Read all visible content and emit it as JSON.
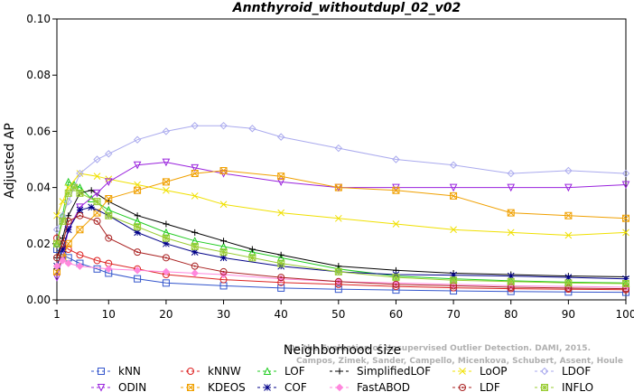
{
  "chart_data": {
    "type": "line",
    "title": "Annthyroid_withoutdupl_02_v02",
    "xlabel": "Neighborhood size",
    "ylabel": "Adjusted AP",
    "xlim": [
      1,
      100
    ],
    "ylim": [
      0,
      0.1
    ],
    "xticks": [
      1,
      10,
      20,
      30,
      40,
      50,
      60,
      70,
      80,
      90,
      100
    ],
    "yticks": [
      "0.00",
      "0.02",
      "0.04",
      "0.06",
      "0.08",
      "0.10"
    ],
    "watermark": [
      "Campos, Zimek, Sander, Campello, Micenkova, Schubert, Assent, Houle",
      "On the Evaluation of Unsupervised Outlier Detection. DAMI, 2015."
    ],
    "series": [
      {
        "name": "kNN",
        "color": "#3355cc",
        "marker": "square",
        "points": [
          [
            1,
            0.018
          ],
          [
            2,
            0.016
          ],
          [
            3,
            0.015
          ],
          [
            5,
            0.013
          ],
          [
            8,
            0.011
          ],
          [
            10,
            0.0095
          ],
          [
            15,
            0.0075
          ],
          [
            20,
            0.006
          ],
          [
            30,
            0.005
          ],
          [
            40,
            0.0042
          ],
          [
            50,
            0.0038
          ],
          [
            60,
            0.0035
          ],
          [
            70,
            0.0032
          ],
          [
            80,
            0.003
          ],
          [
            90,
            0.0028
          ],
          [
            100,
            0.0027
          ]
        ]
      },
      {
        "name": "kNNW",
        "color": "#dd2222",
        "marker": "circle",
        "points": [
          [
            1,
            0.022
          ],
          [
            2,
            0.02
          ],
          [
            3,
            0.018
          ],
          [
            5,
            0.016
          ],
          [
            8,
            0.014
          ],
          [
            10,
            0.013
          ],
          [
            15,
            0.011
          ],
          [
            20,
            0.009
          ],
          [
            30,
            0.0072
          ],
          [
            40,
            0.0062
          ],
          [
            50,
            0.0055
          ],
          [
            60,
            0.0048
          ],
          [
            70,
            0.0043
          ],
          [
            80,
            0.004
          ],
          [
            90,
            0.0038
          ],
          [
            100,
            0.0036
          ]
        ]
      },
      {
        "name": "LOF",
        "color": "#22cc22",
        "marker": "triangle-up",
        "points": [
          [
            1,
            0.02
          ],
          [
            2,
            0.03
          ],
          [
            3,
            0.042
          ],
          [
            4,
            0.041
          ],
          [
            5,
            0.04
          ],
          [
            7,
            0.036
          ],
          [
            10,
            0.032
          ],
          [
            15,
            0.028
          ],
          [
            20,
            0.024
          ],
          [
            25,
            0.021
          ],
          [
            30,
            0.019
          ],
          [
            35,
            0.017
          ],
          [
            40,
            0.015
          ],
          [
            50,
            0.011
          ],
          [
            60,
            0.0085
          ],
          [
            70,
            0.0075
          ],
          [
            80,
            0.0068
          ],
          [
            90,
            0.0063
          ],
          [
            100,
            0.006
          ]
        ]
      },
      {
        "name": "SimplifiedLOF",
        "color": "#000000",
        "marker": "plus",
        "points": [
          [
            1,
            0.015
          ],
          [
            2,
            0.022
          ],
          [
            3,
            0.03
          ],
          [
            5,
            0.038
          ],
          [
            7,
            0.039
          ],
          [
            10,
            0.035
          ],
          [
            15,
            0.03
          ],
          [
            20,
            0.027
          ],
          [
            25,
            0.024
          ],
          [
            30,
            0.021
          ],
          [
            35,
            0.018
          ],
          [
            40,
            0.016
          ],
          [
            50,
            0.012
          ],
          [
            60,
            0.0105
          ],
          [
            70,
            0.0095
          ],
          [
            80,
            0.009
          ],
          [
            90,
            0.0085
          ],
          [
            100,
            0.0082
          ]
        ]
      },
      {
        "name": "LoOP",
        "color": "#f0e000",
        "marker": "cross",
        "points": [
          [
            1,
            0.03
          ],
          [
            2,
            0.035
          ],
          [
            3,
            0.04
          ],
          [
            5,
            0.045
          ],
          [
            8,
            0.044
          ],
          [
            10,
            0.043
          ],
          [
            15,
            0.041
          ],
          [
            20,
            0.039
          ],
          [
            25,
            0.037
          ],
          [
            30,
            0.034
          ],
          [
            40,
            0.031
          ],
          [
            50,
            0.029
          ],
          [
            60,
            0.027
          ],
          [
            70,
            0.025
          ],
          [
            80,
            0.024
          ],
          [
            90,
            0.023
          ],
          [
            100,
            0.024
          ]
        ]
      },
      {
        "name": "LDOF",
        "color": "#aaaaee",
        "marker": "diamond",
        "points": [
          [
            1,
            0.025
          ],
          [
            2,
            0.03
          ],
          [
            3,
            0.035
          ],
          [
            5,
            0.045
          ],
          [
            8,
            0.05
          ],
          [
            10,
            0.052
          ],
          [
            15,
            0.057
          ],
          [
            20,
            0.06
          ],
          [
            25,
            0.062
          ],
          [
            30,
            0.062
          ],
          [
            35,
            0.061
          ],
          [
            40,
            0.058
          ],
          [
            50,
            0.054
          ],
          [
            60,
            0.05
          ],
          [
            70,
            0.048
          ],
          [
            80,
            0.045
          ],
          [
            90,
            0.046
          ],
          [
            100,
            0.045
          ]
        ]
      },
      {
        "name": "ODIN",
        "color": "#9922dd",
        "marker": "triangle-down",
        "points": [
          [
            1,
            0.008
          ],
          [
            2,
            0.015
          ],
          [
            3,
            0.025
          ],
          [
            5,
            0.033
          ],
          [
            8,
            0.038
          ],
          [
            10,
            0.042
          ],
          [
            15,
            0.048
          ],
          [
            20,
            0.049
          ],
          [
            25,
            0.047
          ],
          [
            30,
            0.045
          ],
          [
            40,
            0.042
          ],
          [
            50,
            0.04
          ],
          [
            60,
            0.04
          ],
          [
            70,
            0.04
          ],
          [
            80,
            0.04
          ],
          [
            90,
            0.04
          ],
          [
            100,
            0.041
          ]
        ]
      },
      {
        "name": "KDEOS",
        "color": "#f0a000",
        "marker": "square-x",
        "points": [
          [
            1,
            0.01
          ],
          [
            2,
            0.015
          ],
          [
            3,
            0.02
          ],
          [
            5,
            0.025
          ],
          [
            8,
            0.031
          ],
          [
            10,
            0.036
          ],
          [
            15,
            0.039
          ],
          [
            20,
            0.042
          ],
          [
            25,
            0.045
          ],
          [
            30,
            0.046
          ],
          [
            40,
            0.044
          ],
          [
            50,
            0.04
          ],
          [
            60,
            0.039
          ],
          [
            70,
            0.037
          ],
          [
            80,
            0.031
          ],
          [
            90,
            0.03
          ],
          [
            100,
            0.029
          ]
        ]
      },
      {
        "name": "COF",
        "color": "#000088",
        "marker": "asterisk",
        "points": [
          [
            1,
            0.012
          ],
          [
            2,
            0.018
          ],
          [
            3,
            0.025
          ],
          [
            5,
            0.032
          ],
          [
            7,
            0.033
          ],
          [
            10,
            0.03
          ],
          [
            15,
            0.024
          ],
          [
            20,
            0.02
          ],
          [
            25,
            0.017
          ],
          [
            30,
            0.015
          ],
          [
            40,
            0.012
          ],
          [
            50,
            0.01
          ],
          [
            60,
            0.009
          ],
          [
            70,
            0.0088
          ],
          [
            80,
            0.0085
          ],
          [
            90,
            0.008
          ],
          [
            100,
            0.0075
          ]
        ]
      },
      {
        "name": "FastABOD",
        "color": "#ff88dd",
        "marker": "diamond-filled",
        "points": [
          [
            1,
            0.012
          ],
          [
            2,
            0.014
          ],
          [
            3,
            0.013
          ],
          [
            5,
            0.012
          ],
          [
            10,
            0.011
          ],
          [
            15,
            0.0105
          ],
          [
            20,
            0.01
          ],
          [
            25,
            0.0095
          ],
          [
            30,
            0.009
          ],
          [
            40,
            0.0075
          ],
          [
            50,
            0.0065
          ],
          [
            60,
            0.006
          ],
          [
            70,
            0.0055
          ],
          [
            80,
            0.005
          ],
          [
            90,
            0.0048
          ],
          [
            100,
            0.0045
          ]
        ]
      },
      {
        "name": "LDF",
        "color": "#aa2222",
        "marker": "circle-dot",
        "points": [
          [
            1,
            0.015
          ],
          [
            2,
            0.02
          ],
          [
            3,
            0.028
          ],
          [
            5,
            0.03
          ],
          [
            8,
            0.028
          ],
          [
            10,
            0.022
          ],
          [
            15,
            0.017
          ],
          [
            20,
            0.015
          ],
          [
            25,
            0.012
          ],
          [
            30,
            0.01
          ],
          [
            40,
            0.008
          ],
          [
            50,
            0.0065
          ],
          [
            60,
            0.0055
          ],
          [
            70,
            0.005
          ],
          [
            80,
            0.0045
          ],
          [
            90,
            0.0042
          ],
          [
            100,
            0.004
          ]
        ]
      },
      {
        "name": "INFLO",
        "color": "#99cc33",
        "marker": "square-star",
        "points": [
          [
            1,
            0.02
          ],
          [
            2,
            0.028
          ],
          [
            3,
            0.038
          ],
          [
            4,
            0.04
          ],
          [
            5,
            0.038
          ],
          [
            8,
            0.035
          ],
          [
            10,
            0.03
          ],
          [
            15,
            0.026
          ],
          [
            20,
            0.022
          ],
          [
            25,
            0.019
          ],
          [
            30,
            0.017
          ],
          [
            35,
            0.015
          ],
          [
            40,
            0.013
          ],
          [
            50,
            0.01
          ],
          [
            60,
            0.008
          ],
          [
            70,
            0.007
          ],
          [
            80,
            0.0065
          ],
          [
            90,
            0.006
          ],
          [
            100,
            0.0058
          ]
        ]
      }
    ],
    "legend_position": "bottom"
  }
}
